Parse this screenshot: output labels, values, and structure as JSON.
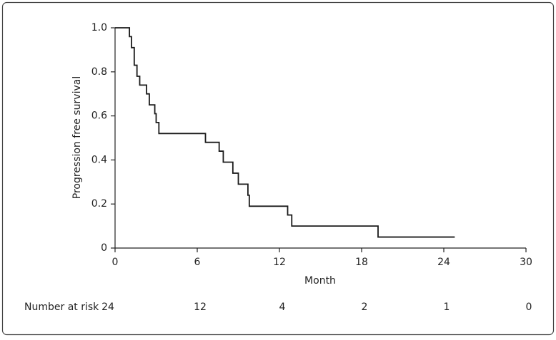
{
  "chart_data": {
    "type": "step",
    "x_label": "Month",
    "y_label": "Progression free survival",
    "x": [
      0,
      1.05,
      1.2,
      1.4,
      1.6,
      1.8,
      2.3,
      2.5,
      2.9,
      3.0,
      3.2,
      6.6,
      7.6,
      7.9,
      8.6,
      9.0,
      9.7,
      9.8,
      12.6,
      12.9,
      19.2,
      24.8
    ],
    "y": [
      1.0,
      0.96,
      0.91,
      0.83,
      0.78,
      0.74,
      0.7,
      0.65,
      0.61,
      0.57,
      0.52,
      0.48,
      0.44,
      0.39,
      0.34,
      0.29,
      0.24,
      0.19,
      0.15,
      0.1,
      0.05,
      0.05
    ],
    "color": "#1a1a1a",
    "xlim": [
      0,
      30
    ],
    "xticks": [
      0,
      6,
      12,
      18,
      24,
      30
    ],
    "ylim": [
      0,
      1.0
    ],
    "yticks": [
      0,
      0.2,
      0.4,
      0.6,
      0.8,
      {
        "value": 1.0,
        "label": "1.0"
      }
    ],
    "risk_table": {
      "label": "Number at risk",
      "values": [
        24,
        12,
        4,
        2,
        1,
        0
      ]
    }
  }
}
